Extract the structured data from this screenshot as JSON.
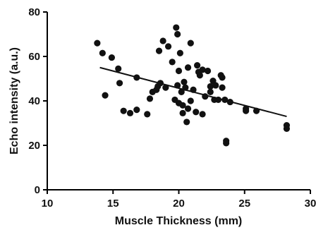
{
  "chart_data": {
    "type": "scatter",
    "title": "",
    "xlabel": "Muscle Thickness (mm)",
    "ylabel": "Echo intensity (a.u.)",
    "xlim": [
      10,
      30
    ],
    "ylim": [
      0,
      80
    ],
    "x_ticks": [
      10,
      15,
      20,
      25,
      30
    ],
    "y_ticks": [
      0,
      20,
      40,
      60,
      80
    ],
    "grid": false,
    "legend": "none",
    "colors": {
      "points": "#111111",
      "trendline": "#111111",
      "axes": "#000000"
    },
    "trendline": {
      "x": [
        14.0,
        28.2
      ],
      "y": [
        55.0,
        33.0
      ]
    },
    "points": [
      {
        "x": 13.8,
        "y": 66
      },
      {
        "x": 14.2,
        "y": 61.5
      },
      {
        "x": 14.4,
        "y": 42.5
      },
      {
        "x": 14.9,
        "y": 59.5
      },
      {
        "x": 15.4,
        "y": 54.5
      },
      {
        "x": 15.5,
        "y": 48
      },
      {
        "x": 15.8,
        "y": 35.5
      },
      {
        "x": 16.3,
        "y": 34.5
      },
      {
        "x": 16.8,
        "y": 50.5
      },
      {
        "x": 16.8,
        "y": 36
      },
      {
        "x": 17.6,
        "y": 34
      },
      {
        "x": 17.8,
        "y": 41
      },
      {
        "x": 18.0,
        "y": 44
      },
      {
        "x": 18.3,
        "y": 45
      },
      {
        "x": 18.4,
        "y": 46.5
      },
      {
        "x": 18.5,
        "y": 62.5
      },
      {
        "x": 18.6,
        "y": 48
      },
      {
        "x": 18.8,
        "y": 67
      },
      {
        "x": 19.0,
        "y": 46
      },
      {
        "x": 19.2,
        "y": 64.5
      },
      {
        "x": 19.5,
        "y": 57.5
      },
      {
        "x": 19.7,
        "y": 40.5
      },
      {
        "x": 19.8,
        "y": 73
      },
      {
        "x": 19.9,
        "y": 70
      },
      {
        "x": 19.9,
        "y": 47
      },
      {
        "x": 20.0,
        "y": 39
      },
      {
        "x": 20.0,
        "y": 53.5
      },
      {
        "x": 20.1,
        "y": 61.5
      },
      {
        "x": 20.2,
        "y": 44
      },
      {
        "x": 20.3,
        "y": 38
      },
      {
        "x": 20.3,
        "y": 34.5
      },
      {
        "x": 20.4,
        "y": 48.5
      },
      {
        "x": 20.5,
        "y": 46
      },
      {
        "x": 20.6,
        "y": 30.5
      },
      {
        "x": 20.7,
        "y": 55
      },
      {
        "x": 20.7,
        "y": 36.5
      },
      {
        "x": 20.9,
        "y": 66
      },
      {
        "x": 20.9,
        "y": 40
      },
      {
        "x": 21.1,
        "y": 45
      },
      {
        "x": 21.3,
        "y": 35
      },
      {
        "x": 21.4,
        "y": 56
      },
      {
        "x": 21.5,
        "y": 53
      },
      {
        "x": 21.6,
        "y": 51.5
      },
      {
        "x": 21.8,
        "y": 34
      },
      {
        "x": 21.8,
        "y": 54
      },
      {
        "x": 22.0,
        "y": 42
      },
      {
        "x": 22.2,
        "y": 53.5
      },
      {
        "x": 22.4,
        "y": 46.5
      },
      {
        "x": 22.4,
        "y": 44
      },
      {
        "x": 22.6,
        "y": 49
      },
      {
        "x": 22.7,
        "y": 40.5
      },
      {
        "x": 22.8,
        "y": 47
      },
      {
        "x": 23.0,
        "y": 40.5
      },
      {
        "x": 23.2,
        "y": 51.5
      },
      {
        "x": 23.3,
        "y": 46
      },
      {
        "x": 23.3,
        "y": 50.5
      },
      {
        "x": 23.5,
        "y": 40.5
      },
      {
        "x": 23.6,
        "y": 22
      },
      {
        "x": 23.6,
        "y": 21
      },
      {
        "x": 23.9,
        "y": 39.5
      },
      {
        "x": 25.1,
        "y": 36.5
      },
      {
        "x": 25.1,
        "y": 35.5
      },
      {
        "x": 25.9,
        "y": 35.5
      },
      {
        "x": 28.2,
        "y": 29
      },
      {
        "x": 28.2,
        "y": 27.5
      }
    ]
  }
}
